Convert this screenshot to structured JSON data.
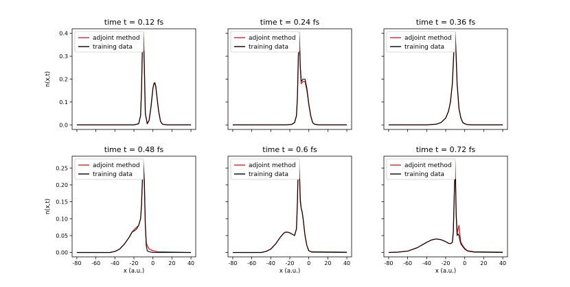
{
  "chart_data": {
    "type": "line",
    "layout": "2x3 grid, shared x axis per column, shared y axis per row",
    "colors": {
      "adjoint": "#d62728",
      "training": "#000000"
    },
    "ylabel": "n(x,t)",
    "xlabel": "x (a.u.)",
    "xlim": [
      -85,
      45
    ],
    "xticks": [
      -80,
      -60,
      -40,
      -20,
      0,
      20,
      40
    ],
    "legend": [
      "adjoint method",
      "training data"
    ],
    "legend_position": "upper-left",
    "rows": [
      {
        "ylim": [
          -0.02,
          0.42
        ],
        "yticks": [
          "0.0",
          "0.1",
          "0.2",
          "0.3",
          "0.4"
        ],
        "ytick_values": [
          0,
          0.1,
          0.2,
          0.3,
          0.4
        ]
      },
      {
        "ylim": [
          -0.013,
          0.285
        ],
        "yticks": [
          "0.00",
          "0.05",
          "0.10",
          "0.15",
          "0.20",
          "0.25"
        ],
        "ytick_values": [
          0,
          0.05,
          0.1,
          0.15,
          0.2,
          0.25
        ]
      }
    ],
    "panels": [
      {
        "title": "time t = 0.12 fs",
        "series": [
          {
            "name": "adjoint method",
            "x": [
              -80,
              -20,
              -15,
              -13,
              -12,
              -11,
              -10,
              -9,
              -8,
              -6,
              -4,
              -2,
              0,
              1,
              2,
              3,
              4,
              6,
              8,
              10,
              15,
              40
            ],
            "y": [
              0,
              0,
              0.005,
              0.04,
              0.15,
              0.35,
              0.4,
              0.25,
              0.05,
              0.005,
              0.02,
              0.08,
              0.16,
              0.18,
              0.18,
              0.165,
              0.13,
              0.06,
              0.015,
              0.003,
              0,
              0
            ]
          },
          {
            "name": "training data",
            "x": [
              -80,
              -20,
              -15,
              -13,
              -12,
              -11,
              -10,
              -9,
              -8,
              -6,
              -4,
              -2,
              0,
              1,
              2,
              3,
              4,
              6,
              8,
              10,
              15,
              40
            ],
            "y": [
              0,
              0,
              0.005,
              0.04,
              0.15,
              0.36,
              0.405,
              0.25,
              0.05,
              0.005,
              0.02,
              0.08,
              0.16,
              0.18,
              0.185,
              0.17,
              0.13,
              0.06,
              0.015,
              0.003,
              0,
              0
            ]
          }
        ]
      },
      {
        "title": "time t = 0.24 fs",
        "series": [
          {
            "name": "adjoint method",
            "x": [
              -80,
              -25,
              -18,
              -15,
              -13,
              -12,
              -11,
              -10,
              -9,
              -8,
              -6,
              -4,
              -2,
              0,
              2,
              4,
              6,
              10,
              40
            ],
            "y": [
              0,
              0,
              0.002,
              0.01,
              0.04,
              0.12,
              0.3,
              0.4,
              0.25,
              0.18,
              0.19,
              0.19,
              0.15,
              0.09,
              0.04,
              0.01,
              0.003,
              0,
              0
            ]
          },
          {
            "name": "training data",
            "x": [
              -80,
              -25,
              -18,
              -15,
              -13,
              -12,
              -11,
              -10,
              -9,
              -8,
              -6,
              -4,
              -2,
              0,
              2,
              4,
              6,
              10,
              40
            ],
            "y": [
              0,
              0,
              0.002,
              0.01,
              0.04,
              0.12,
              0.3,
              0.405,
              0.26,
              0.19,
              0.2,
              0.2,
              0.16,
              0.09,
              0.04,
              0.01,
              0.003,
              0,
              0
            ]
          }
        ]
      },
      {
        "title": "time t = 0.36 fs",
        "series": [
          {
            "name": "adjoint method",
            "x": [
              -80,
              -40,
              -30,
              -25,
              -20,
              -17,
              -15,
              -13,
              -12,
              -11,
              -10,
              -9,
              -8,
              -6,
              -4,
              -2,
              0,
              3,
              8,
              40
            ],
            "y": [
              0,
              0,
              0.003,
              0.01,
              0.03,
              0.06,
              0.1,
              0.18,
              0.27,
              0.36,
              0.4,
              0.3,
              0.18,
              0.07,
              0.03,
              0.01,
              0.005,
              0.001,
              0,
              0
            ]
          },
          {
            "name": "training data",
            "x": [
              -80,
              -40,
              -30,
              -25,
              -20,
              -17,
              -15,
              -13,
              -12,
              -11,
              -10,
              -9,
              -8,
              -6,
              -4,
              -2,
              0,
              3,
              8,
              40
            ],
            "y": [
              0,
              0,
              0.003,
              0.01,
              0.03,
              0.06,
              0.1,
              0.18,
              0.27,
              0.37,
              0.405,
              0.3,
              0.18,
              0.07,
              0.03,
              0.01,
              0.005,
              0.001,
              0,
              0
            ]
          }
        ]
      },
      {
        "title": "time t = 0.48 fs",
        "series": [
          {
            "name": "adjoint method",
            "x": [
              -80,
              -45,
              -40,
              -35,
              -30,
              -25,
              -22,
              -19,
              -17,
              -15,
              -13,
              -12,
              -11,
              -10,
              -9,
              -8,
              -7,
              -6,
              -4,
              -2,
              0,
              5,
              40
            ],
            "y": [
              0,
              0,
              0.003,
              0.01,
              0.025,
              0.045,
              0.06,
              0.07,
              0.075,
              0.08,
              0.1,
              0.14,
              0.22,
              0.26,
              0.2,
              0.08,
              0.03,
              0.02,
              0.01,
              0.008,
              0.005,
              0.002,
              0
            ]
          },
          {
            "name": "training data",
            "x": [
              -80,
              -45,
              -40,
              -35,
              -30,
              -25,
              -22,
              -19,
              -17,
              -15,
              -13,
              -12,
              -11,
              -10,
              -9,
              -8,
              -7,
              -6,
              -4,
              -2,
              0,
              5,
              40
            ],
            "y": [
              0,
              0,
              0.003,
              0.01,
              0.025,
              0.045,
              0.06,
              0.065,
              0.07,
              0.08,
              0.1,
              0.14,
              0.22,
              0.27,
              0.21,
              0.08,
              0.02,
              0.005,
              0.002,
              0.001,
              0,
              0,
              0
            ]
          }
        ]
      },
      {
        "title": "time t = 0.6 fs",
        "series": [
          {
            "name": "adjoint method",
            "x": [
              -80,
              -50,
              -45,
              -40,
              -35,
              -30,
              -27,
              -25,
              -22,
              -20,
              -18,
              -15,
              -13,
              -12,
              -11,
              -10,
              -9,
              -8,
              -7,
              -6,
              -4,
              -2,
              0,
              3,
              40
            ],
            "y": [
              0,
              0,
              0.003,
              0.01,
              0.025,
              0.045,
              0.055,
              0.06,
              0.06,
              0.058,
              0.055,
              0.05,
              0.07,
              0.15,
              0.27,
              0.25,
              0.15,
              0.13,
              0.12,
              0.1,
              0.05,
              0.02,
              0.005,
              0.002,
              0.001
            ]
          },
          {
            "name": "training data",
            "x": [
              -80,
              -50,
              -45,
              -40,
              -35,
              -30,
              -27,
              -25,
              -22,
              -20,
              -18,
              -15,
              -13,
              -12,
              -11,
              -10,
              -9,
              -8,
              -7,
              -6,
              -4,
              -2,
              0,
              3,
              40
            ],
            "y": [
              0,
              0,
              0.003,
              0.01,
              0.025,
              0.045,
              0.055,
              0.06,
              0.06,
              0.058,
              0.055,
              0.05,
              0.07,
              0.15,
              0.27,
              0.26,
              0.16,
              0.13,
              0.12,
              0.1,
              0.05,
              0.02,
              0.005,
              0.001,
              0
            ]
          }
        ]
      },
      {
        "title": "time t = 0.72 fs",
        "series": [
          {
            "name": "adjoint method",
            "x": [
              -80,
              -70,
              -60,
              -50,
              -45,
              -40,
              -35,
              -30,
              -25,
              -20,
              -17,
              -15,
              -13,
              -12,
              -11,
              -10,
              -9,
              -8,
              -7,
              -6,
              -5,
              -4,
              -2,
              0,
              3,
              10,
              40
            ],
            "y": [
              0,
              0.001,
              0.004,
              0.014,
              0.022,
              0.03,
              0.037,
              0.04,
              0.038,
              0.032,
              0.027,
              0.026,
              0.03,
              0.06,
              0.17,
              0.27,
              0.12,
              0.055,
              0.07,
              0.08,
              0.05,
              0.03,
              0.02,
              0.012,
              0.005,
              0.002,
              0.001
            ]
          },
          {
            "name": "training data",
            "x": [
              -80,
              -70,
              -60,
              -50,
              -45,
              -40,
              -35,
              -30,
              -25,
              -20,
              -17,
              -15,
              -13,
              -12,
              -11,
              -10,
              -9,
              -8,
              -7,
              -6,
              -5,
              -4,
              -2,
              0,
              3,
              10,
              40
            ],
            "y": [
              0,
              0.001,
              0.004,
              0.014,
              0.022,
              0.03,
              0.037,
              0.04,
              0.038,
              0.032,
              0.027,
              0.026,
              0.03,
              0.06,
              0.17,
              0.26,
              0.11,
              0.05,
              0.055,
              0.05,
              0.035,
              0.025,
              0.017,
              0.01,
              0.004,
              0.001,
              0
            ]
          }
        ]
      }
    ]
  }
}
